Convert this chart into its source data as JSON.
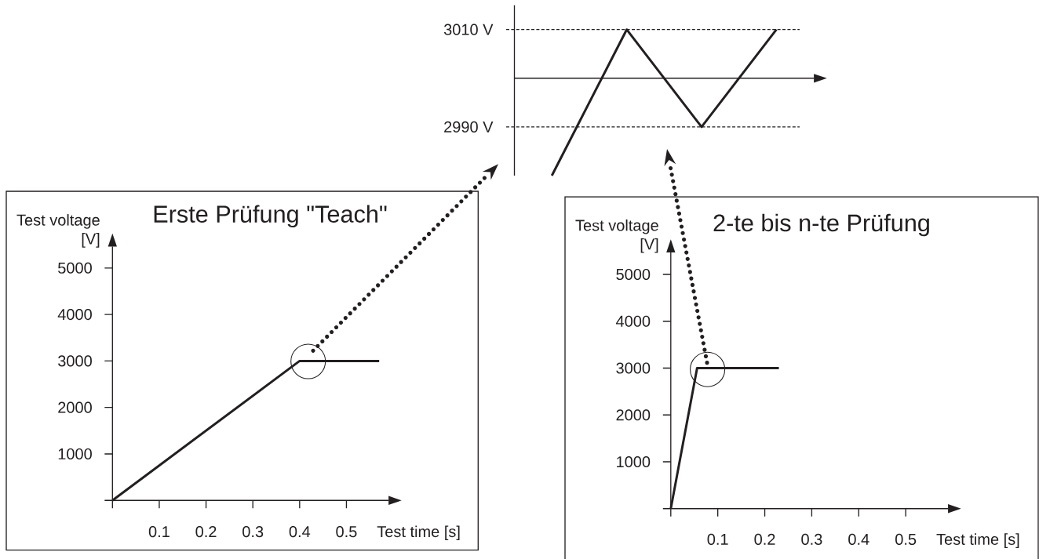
{
  "chart_data": [
    {
      "type": "line",
      "categories": [
        null,
        null,
        null,
        null
      ],
      "values": [
        2980,
        3010,
        2990,
        3010
      ],
      "color": "#231f20",
      "ylim": [
        2980,
        3015
      ],
      "yticks": [
        {
          "value": 3010,
          "label": "3010 V"
        },
        {
          "value": 2990,
          "label": "2990 V"
        }
      ],
      "tick_labels": "y",
      "ref_lines": [
        {
          "axis": "y",
          "value": 3010,
          "line_style": "dashed"
        },
        {
          "axis": "y",
          "value": 2990,
          "line_style": "dashed"
        },
        {
          "axis": "y",
          "value": 3000,
          "line_style": "solid"
        }
      ]
    },
    {
      "type": "line",
      "title": "Erste Prüfung \"Teach\"",
      "xlabel": "Test time [s]",
      "ylabel": "Test voltage [V]",
      "x": [
        0,
        0.4,
        0.57
      ],
      "values": [
        0,
        3000,
        3000
      ],
      "color": "#231f20",
      "xlim": [
        0,
        0.59
      ],
      "ylim": [
        0,
        5460
      ],
      "xticks": [
        {
          "value": 0,
          "label": null
        },
        0.1,
        0.2,
        0.3,
        0.4,
        0.5
      ],
      "yticks": [
        {
          "value": 0,
          "label": null
        },
        1000,
        2000,
        3000,
        4000,
        5000
      ]
    },
    {
      "type": "line",
      "title": "2-te bis n-te Prüfung",
      "xlabel": "Test time [s]",
      "ylabel": "Test voltage [V]",
      "x": [
        0,
        0.056,
        0.23
      ],
      "values": [
        0,
        3000,
        3000
      ],
      "color": "#231f20",
      "xlim": [
        0,
        0.59
      ],
      "ylim": [
        0,
        5470
      ],
      "xticks": [
        {
          "value": 0,
          "label": null
        },
        0.1,
        0.2,
        0.3,
        0.4,
        0.5
      ],
      "yticks": [
        {
          "value": 0,
          "label": null
        },
        1000,
        2000,
        3000,
        4000,
        5000
      ]
    }
  ]
}
